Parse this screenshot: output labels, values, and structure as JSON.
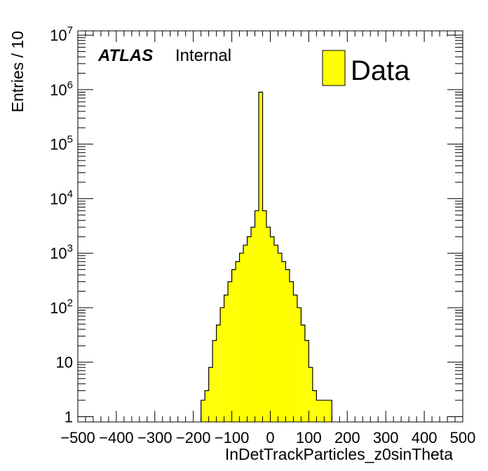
{
  "chart_data": {
    "type": "bar",
    "xlabel": "InDetTrackParticles_z0sinTheta",
    "ylabel": "Entries / 10",
    "xlim": [
      -500,
      500
    ],
    "ylim": [
      0.8,
      12000000
    ],
    "yscale": "log",
    "bin_width": 10,
    "x_ticks": [
      -500,
      -400,
      -300,
      -200,
      -100,
      0,
      100,
      200,
      300,
      400,
      500
    ],
    "x_tick_labels": [
      "−500",
      "−400",
      "−300",
      "−200",
      "−100",
      "0",
      "100",
      "200",
      "300",
      "400",
      "500"
    ],
    "y_ticks": [
      {
        "value": 1,
        "base": "1",
        "exp": ""
      },
      {
        "value": 10,
        "base": "10",
        "exp": ""
      },
      {
        "value": 100,
        "base": "10",
        "exp": "2"
      },
      {
        "value": 1000,
        "base": "10",
        "exp": "3"
      },
      {
        "value": 10000,
        "base": "10",
        "exp": "4"
      },
      {
        "value": 100000,
        "base": "10",
        "exp": "5"
      },
      {
        "value": 1000000,
        "base": "10",
        "exp": "6"
      },
      {
        "value": 10000000,
        "base": "10",
        "exp": "7"
      }
    ],
    "series": [
      {
        "name": "Data",
        "color": "#ffff00",
        "bin_low_edges": [
          -180,
          -170,
          -160,
          -150,
          -140,
          -130,
          -120,
          -110,
          -100,
          -90,
          -80,
          -70,
          -60,
          -50,
          -40,
          -30,
          -20,
          -10,
          0,
          10,
          20,
          30,
          40,
          50,
          60,
          70,
          80,
          90,
          100,
          110,
          120,
          130,
          140,
          150
        ],
        "values": [
          2,
          3,
          8,
          25,
          48,
          100,
          170,
          300,
          500,
          700,
          1000,
          1400,
          2000,
          3000,
          6000,
          900000,
          6000,
          3000,
          2000,
          1400,
          1000,
          700,
          500,
          300,
          170,
          100,
          48,
          25,
          8,
          3,
          2,
          2,
          2,
          2
        ]
      }
    ],
    "annotations": {
      "atlas_label": "ATLAS",
      "status_label": "Internal"
    },
    "legend": {
      "placement": "top-right",
      "entries": [
        "Data"
      ]
    },
    "grid": false
  }
}
